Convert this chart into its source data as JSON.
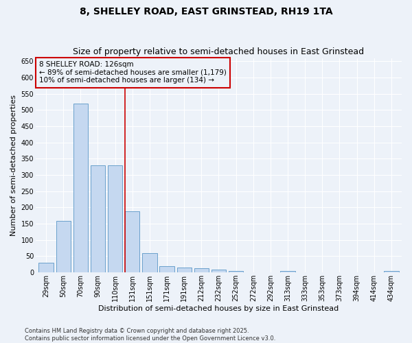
{
  "title1": "8, SHELLEY ROAD, EAST GRINSTEAD, RH19 1TA",
  "title2": "Size of property relative to semi-detached houses in East Grinstead",
  "xlabel": "Distribution of semi-detached houses by size in East Grinstead",
  "ylabel": "Number of semi-detached properties",
  "categories": [
    "29sqm",
    "50sqm",
    "70sqm",
    "90sqm",
    "110sqm",
    "131sqm",
    "151sqm",
    "171sqm",
    "191sqm",
    "212sqm",
    "232sqm",
    "252sqm",
    "272sqm",
    "292sqm",
    "313sqm",
    "333sqm",
    "353sqm",
    "373sqm",
    "394sqm",
    "414sqm",
    "434sqm"
  ],
  "values": [
    29,
    159,
    519,
    330,
    330,
    189,
    60,
    20,
    15,
    12,
    9,
    4,
    0,
    0,
    5,
    0,
    0,
    0,
    0,
    0,
    5
  ],
  "bar_color": "#c5d8f0",
  "bar_edge_color": "#6aa0cc",
  "vline_color": "#cc0000",
  "vline_index": 5,
  "annotation_text": "8 SHELLEY ROAD: 126sqm\n← 89% of semi-detached houses are smaller (1,179)\n10% of semi-detached houses are larger (134) →",
  "ylim": [
    0,
    660
  ],
  "yticks": [
    0,
    50,
    100,
    150,
    200,
    250,
    300,
    350,
    400,
    450,
    500,
    550,
    600,
    650
  ],
  "bg_color": "#edf2f9",
  "grid_color": "#ffffff",
  "footer": "Contains HM Land Registry data © Crown copyright and database right 2025.\nContains public sector information licensed under the Open Government Licence v3.0.",
  "title_fontsize": 10,
  "subtitle_fontsize": 9,
  "tick_fontsize": 7,
  "label_fontsize": 8,
  "annotation_fontsize": 7.5,
  "footer_fontsize": 6
}
